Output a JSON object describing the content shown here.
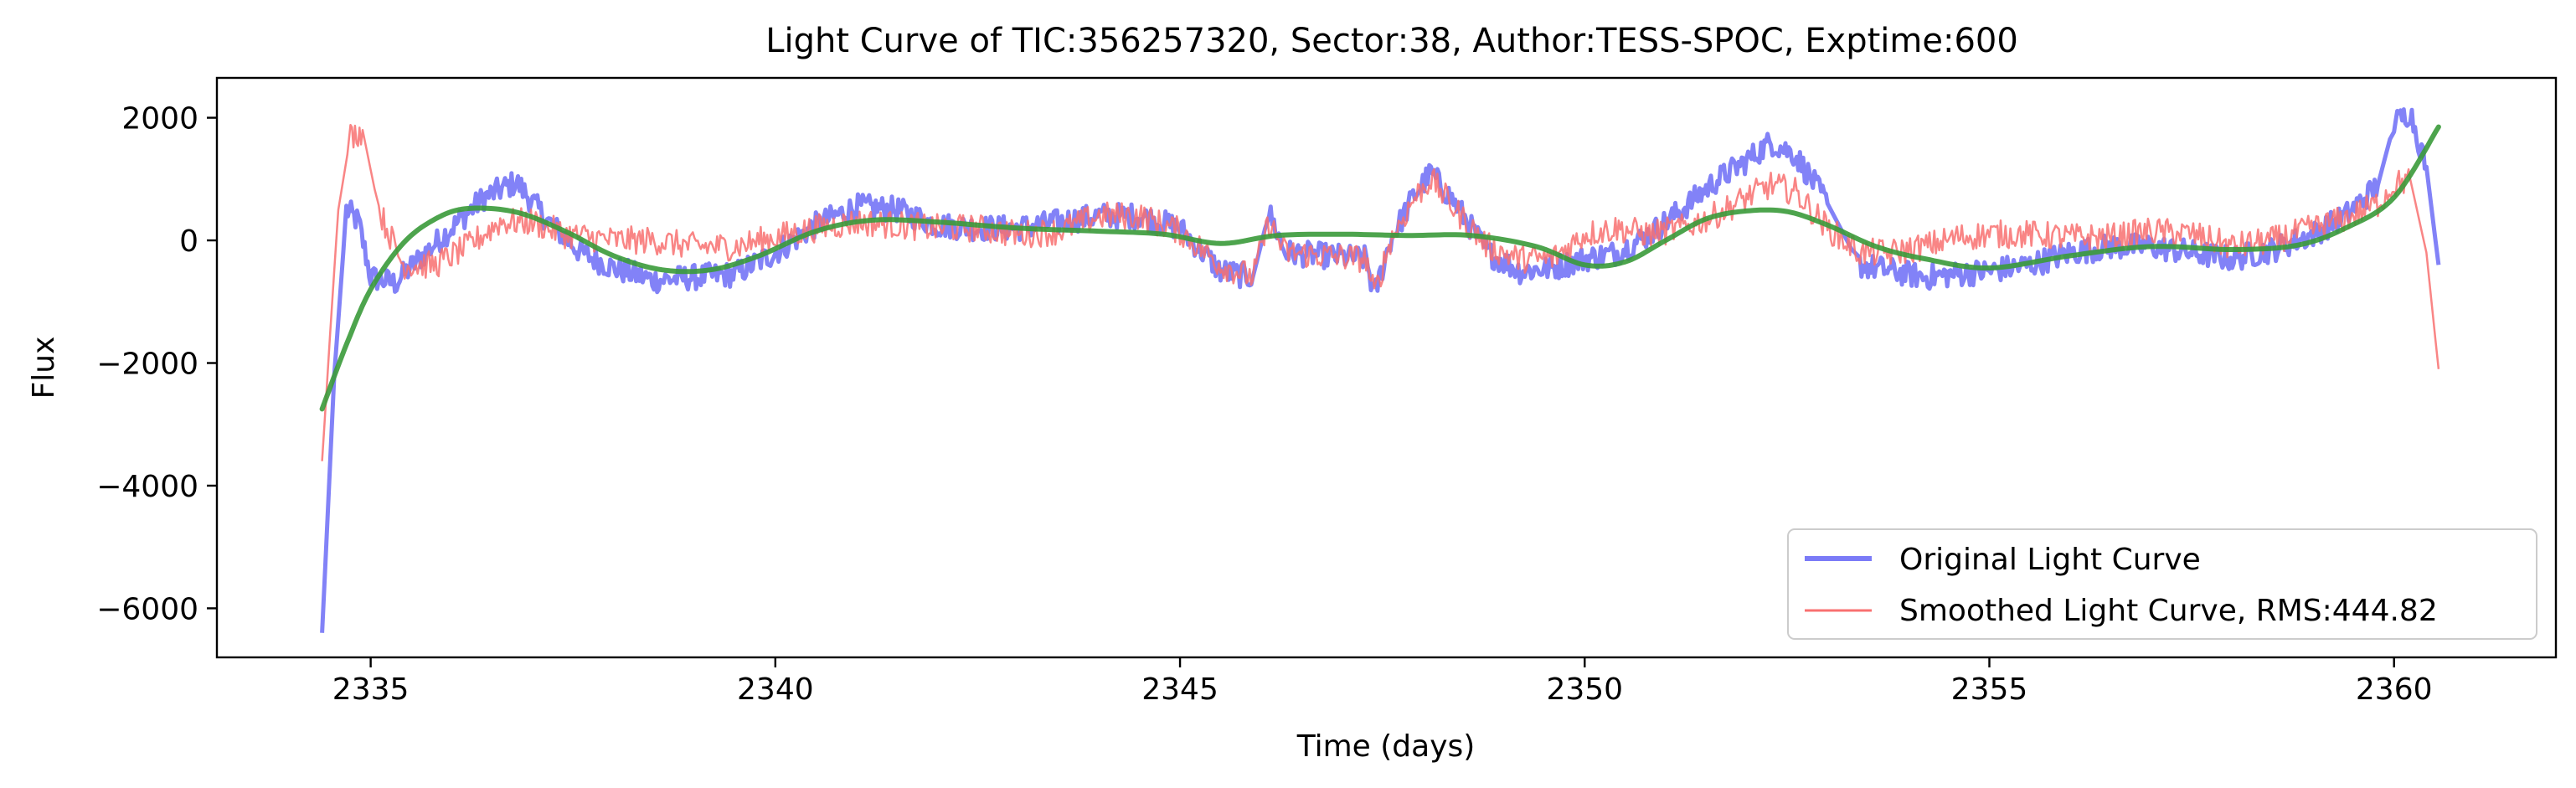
{
  "chart_data": {
    "type": "line",
    "title": "Light Curve of TIC:356257320, Sector:38, Author:TESS-SPOC, Exptime:600",
    "xlabel": "Time (days)",
    "ylabel": "Flux",
    "xlim": [
      2333.1,
      2362.0
    ],
    "ylim": [
      -6800,
      2650
    ],
    "xticks": [
      2335,
      2340,
      2345,
      2350,
      2355,
      2360
    ],
    "xtick_labels": [
      "2335",
      "2340",
      "2345",
      "2350",
      "2355",
      "2360"
    ],
    "yticks": [
      -6000,
      -4000,
      -2000,
      0,
      2000
    ],
    "ytick_labels": [
      "−6000",
      "−4000",
      "−2000",
      "0",
      "2000"
    ],
    "grid": false,
    "legend_position": "lower-right",
    "series": [
      {
        "name": "Original Light Curve",
        "color": "#7b7bf7",
        "x": [
          2334.4,
          2334.55,
          2334.7,
          2334.85,
          2335.0,
          2335.3,
          2335.6,
          2336.0,
          2336.4,
          2336.8,
          2337.2,
          2337.6,
          2338.0,
          2338.5,
          2339.0,
          2339.5,
          2340.0,
          2340.5,
          2341.0,
          2341.5,
          2342.0,
          2342.5,
          2343.0,
          2343.5,
          2344.0,
          2344.5,
          2345.0,
          2345.5,
          2345.9,
          2346.1,
          2346.3,
          2347.3,
          2347.4,
          2347.6,
          2347.9,
          2348.1,
          2348.4,
          2348.8,
          2349.2,
          2349.6,
          2350.0,
          2350.4,
          2350.8,
          2351.2,
          2351.6,
          2352.0,
          2352.3,
          2352.6,
          2353.0,
          2353.4,
          2353.8,
          2354.2,
          2354.6,
          2355.0,
          2355.5,
          2356.0,
          2356.5,
          2357.0,
          2357.5,
          2358.0,
          2358.5,
          2359.0,
          2359.4,
          2359.8,
          2360.0,
          2360.2,
          2360.4,
          2360.55
        ],
        "y": [
          -6400,
          -2200,
          500,
          300,
          -600,
          -700,
          -300,
          200,
          700,
          950,
          300,
          -200,
          -450,
          -650,
          -600,
          -550,
          -200,
          250,
          550,
          500,
          250,
          200,
          200,
          300,
          400,
          400,
          200,
          -500,
          -600,
          450,
          -200,
          -300,
          -900,
          0,
          750,
          1100,
          600,
          -200,
          -500,
          -450,
          -300,
          -200,
          100,
          500,
          950,
          1300,
          1600,
          1400,
          600,
          -400,
          -500,
          -600,
          -550,
          -500,
          -400,
          -200,
          -100,
          -100,
          -200,
          -300,
          -150,
          100,
          400,
          900,
          1900,
          2100,
          1200,
          -400
        ]
      },
      {
        "name": "Smoothed Light Curve, RMS:444.82",
        "color": "#f87070",
        "x": [
          2334.4,
          2334.5,
          2334.6,
          2334.75,
          2334.9,
          2335.1,
          2335.4,
          2335.8,
          2336.2,
          2336.6,
          2337.0,
          2337.4,
          2338.0,
          2338.5,
          2339.0,
          2339.5,
          2340.0,
          2340.5,
          2341.0,
          2341.5,
          2342.0,
          2342.5,
          2343.0,
          2343.5,
          2344.0,
          2344.5,
          2345.0,
          2345.5,
          2345.9,
          2346.1,
          2346.3,
          2347.3,
          2347.4,
          2347.6,
          2347.9,
          2348.1,
          2348.4,
          2348.8,
          2349.2,
          2349.6,
          2350.0,
          2350.4,
          2350.8,
          2351.2,
          2351.6,
          2352.0,
          2352.3,
          2352.6,
          2353.0,
          2353.4,
          2353.8,
          2354.2,
          2354.6,
          2355.0,
          2355.5,
          2356.0,
          2356.5,
          2357.0,
          2357.5,
          2358.0,
          2358.5,
          2359.0,
          2359.4,
          2359.8,
          2360.0,
          2360.2,
          2360.4,
          2360.55
        ],
        "y": [
          -3600,
          -1500,
          500,
          1700,
          1800,
          500,
          -400,
          -400,
          -100,
          300,
          300,
          100,
          0,
          0,
          -100,
          -100,
          50,
          200,
          300,
          250,
          200,
          200,
          100,
          150,
          400,
          400,
          150,
          -400,
          -600,
          300,
          -200,
          -300,
          -900,
          0,
          700,
          1000,
          500,
          -100,
          -300,
          -300,
          100,
          200,
          100,
          200,
          400,
          700,
          900,
          800,
          200,
          -200,
          -200,
          -100,
          50,
          100,
          100,
          50,
          50,
          150,
          100,
          -100,
          0,
          200,
          350,
          600,
          900,
          1000,
          -200,
          -2100
        ]
      },
      {
        "name": "",
        "color": "#3a9a3a",
        "x": [
          2334.4,
          2334.7,
          2335.0,
          2335.4,
          2335.8,
          2336.2,
          2336.8,
          2337.4,
          2338.0,
          2338.6,
          2339.2,
          2339.8,
          2340.5,
          2341.2,
          2342.0,
          2343.0,
          2344.0,
          2344.8,
          2345.5,
          2346.2,
          2347.0,
          2347.8,
          2348.6,
          2349.4,
          2350.0,
          2350.5,
          2351.0,
          2351.5,
          2352.0,
          2352.5,
          2353.0,
          2353.6,
          2354.2,
          2355.0,
          2356.0,
          2357.0,
          2358.0,
          2358.8,
          2359.4,
          2360.0,
          2360.55
        ],
        "y": [
          -2750,
          -1700,
          -800,
          -50,
          350,
          520,
          460,
          150,
          -250,
          -480,
          -480,
          -250,
          150,
          330,
          300,
          200,
          150,
          100,
          -50,
          80,
          100,
          80,
          80,
          -100,
          -400,
          -350,
          0,
          350,
          480,
          470,
          250,
          -100,
          -300,
          -450,
          -250,
          -100,
          -150,
          -80,
          200,
          700,
          1850
        ]
      }
    ]
  }
}
